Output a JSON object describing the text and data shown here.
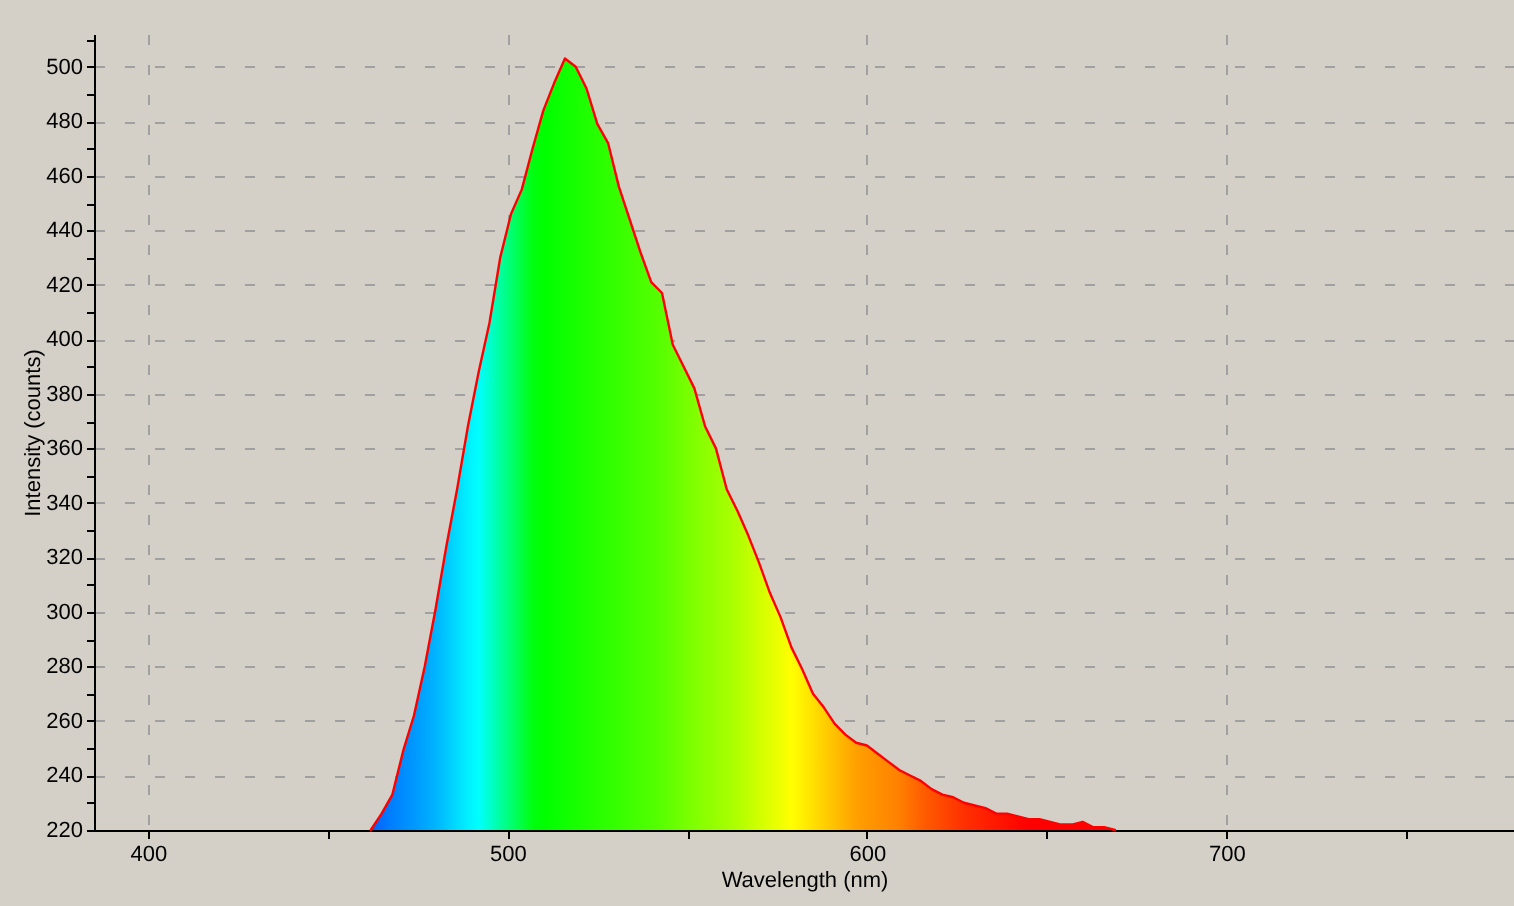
{
  "chart_data": {
    "type": "area",
    "xlabel": "Wavelength (nm)",
    "ylabel": "Intensity (counts)",
    "xlim": [
      385,
      780
    ],
    "ylim": [
      220,
      512
    ],
    "xticks": [
      400,
      {
        "value": 450,
        "label": null
      },
      500,
      {
        "value": 550,
        "label": null
      },
      600,
      {
        "value": 650,
        "label": null
      },
      700,
      {
        "value": 750,
        "label": null
      }
    ],
    "yticks": [
      220,
      {
        "value": 230,
        "label": null
      },
      240,
      {
        "value": 250,
        "label": null
      },
      260,
      {
        "value": 270,
        "label": null
      },
      280,
      {
        "value": 290,
        "label": null
      },
      300,
      {
        "value": 310,
        "label": null
      },
      320,
      {
        "value": 330,
        "label": null
      },
      340,
      {
        "value": 350,
        "label": null
      },
      360,
      {
        "value": 370,
        "label": null
      },
      380,
      {
        "value": 390,
        "label": null
      },
      400,
      {
        "value": 410,
        "label": null
      },
      420,
      {
        "value": 430,
        "label": null
      },
      440,
      {
        "value": 450,
        "label": null
      },
      460,
      {
        "value": 470,
        "label": null
      },
      480,
      {
        "value": 490,
        "label": null
      },
      500,
      {
        "value": 510,
        "label": null
      }
    ],
    "grid": true,
    "x": [
      462,
      465,
      468,
      471,
      474,
      477,
      480,
      483,
      486,
      489,
      492,
      495,
      498,
      501,
      504,
      507,
      510,
      513,
      516,
      519,
      522,
      525,
      528,
      531,
      534,
      537,
      540,
      543,
      546,
      549,
      552,
      555,
      558,
      561,
      564,
      567,
      570,
      573,
      576,
      579,
      582,
      585,
      588,
      591,
      594,
      597,
      600,
      603,
      606,
      609,
      612,
      615,
      618,
      621,
      624,
      627,
      630,
      633,
      636,
      639,
      642,
      645,
      648,
      651,
      654,
      657,
      660,
      663,
      666,
      669
    ],
    "series": [
      {
        "color": "#ff0000",
        "values": [
          220,
          226,
          233,
          249,
          262,
          280,
          301,
          324,
          345,
          368,
          388,
          406,
          430,
          446,
          455,
          470,
          484,
          494,
          503,
          500,
          492,
          479,
          472,
          456,
          444,
          432,
          421,
          417,
          398,
          390,
          382,
          368,
          360,
          345,
          337,
          328,
          318,
          307,
          298,
          287,
          279,
          270,
          265,
          259,
          255,
          252,
          251,
          248,
          245,
          242,
          240,
          238,
          235,
          233,
          232,
          230,
          229,
          228,
          226,
          226,
          225,
          224,
          224,
          223,
          222,
          222,
          223,
          221,
          221,
          220
        ],
        "colors": [
          "#0066ff",
          "#0070ff",
          "#0080ff",
          "#008cff",
          "#0098ff",
          "#00a6ff",
          "#00b4ff",
          "#00c8ff",
          "#00dcff",
          "#00f0ff",
          "#00ffff",
          "#00ffd0",
          "#00ffa0",
          "#00ff70",
          "#00ff40",
          "#00ff10",
          "#00ff00",
          "#08ff00",
          "#10ff00",
          "#18ff00",
          "#20ff00",
          "#28ff00",
          "#30ff00",
          "#38ff00",
          "#40ff00",
          "#48ff00",
          "#50ff00",
          "#5aff00",
          "#66ff00",
          "#74ff00",
          "#80ff00",
          "#8cff00",
          "#98ff00",
          "#a4ff00",
          "#b0ff00",
          "#c0ff00",
          "#d0ff00",
          "#e0ff00",
          "#f0ff00",
          "#ffff00",
          "#fff000",
          "#ffe000",
          "#ffd000",
          "#ffc000",
          "#ffb000",
          "#ffa000",
          "#ff9800",
          "#ff9000",
          "#ff8800",
          "#ff8000",
          "#ff7000",
          "#ff6000",
          "#ff5400",
          "#ff4800",
          "#ff3c00",
          "#ff3000",
          "#ff2800",
          "#ff2000",
          "#ff1800",
          "#ff1000",
          "#ff0800",
          "#ff0000",
          "#ff0000",
          "#ff0000",
          "#ff0000",
          "#ff0000",
          "#ff0000",
          "#ff0000",
          "#ff0000",
          "#ff0000"
        ]
      }
    ]
  }
}
